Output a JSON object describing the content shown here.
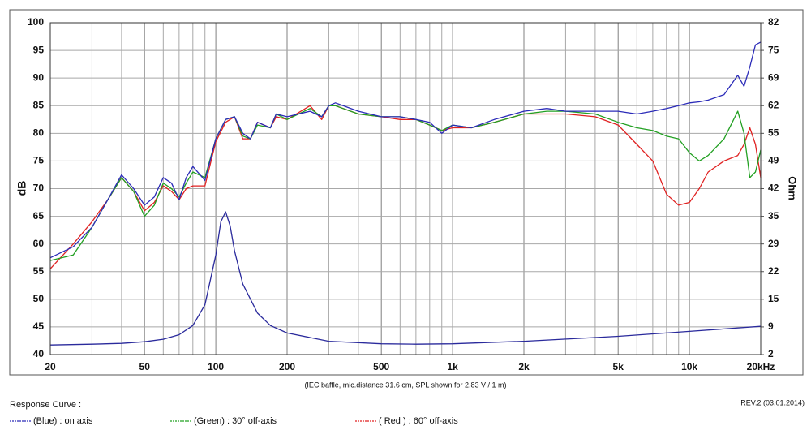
{
  "chart_data": {
    "type": "line",
    "xlabel": null,
    "ylabel": "dB",
    "y2label": "Ohm",
    "note": "(IEC baffle, mic.distance 31.6 cm, SPL shown for 2.83 V / 1 m)",
    "legend_title": "Response Curve :",
    "revision": "REV.2 (03.01.2014)",
    "xscale": "log",
    "grid": true,
    "xlim": [
      20,
      20000
    ],
    "xticks": [
      20,
      50,
      100,
      200,
      500,
      {
        "value": 1000,
        "label": "1k"
      },
      {
        "value": 2000,
        "label": "2k"
      },
      {
        "value": 5000,
        "label": "5k"
      },
      {
        "value": 10000,
        "label": "10k"
      },
      {
        "value": 20000,
        "label": "20kHz"
      }
    ],
    "xminorticks": [
      30,
      40,
      60,
      70,
      80,
      90,
      300,
      400,
      600,
      700,
      800,
      900,
      3000,
      4000,
      6000,
      7000,
      8000,
      9000
    ],
    "ylim": [
      40,
      100
    ],
    "yticks": [
      40,
      45,
      50,
      55,
      60,
      65,
      70,
      75,
      80,
      85,
      90,
      95,
      100
    ],
    "y2lim": [
      2,
      82
    ],
    "y2ticks": [
      2,
      {
        "value": 8.667,
        "label": "9"
      },
      {
        "value": 15.333,
        "label": "15"
      },
      22,
      {
        "value": 28.667,
        "label": "29"
      },
      {
        "value": 35.333,
        "label": "35"
      },
      42,
      {
        "value": 48.667,
        "label": "49"
      },
      {
        "value": 55.333,
        "label": "55"
      },
      62,
      {
        "value": 68.667,
        "label": "69"
      },
      {
        "value": 75.333,
        "label": "75"
      },
      82
    ],
    "x": [
      20,
      25,
      30,
      35,
      40,
      45,
      50,
      55,
      60,
      65,
      70,
      75,
      80,
      90,
      100,
      110,
      120,
      130,
      140,
      150,
      170,
      180,
      200,
      250,
      280,
      300,
      320,
      400,
      500,
      600,
      700,
      800,
      900,
      1000,
      1200,
      1500,
      2000,
      2500,
      3000,
      4000,
      5000,
      6000,
      7000,
      8000,
      9000,
      10000,
      11000,
      12000,
      14000,
      16000,
      17000,
      18000,
      19000,
      20000
    ],
    "series": [
      {
        "name": "(Blue) : on axis",
        "color": "#2b2bb8",
        "values": [
          57.5,
          59.5,
          63,
          68,
          72.5,
          70,
          67,
          68.5,
          72,
          71,
          68,
          72,
          74,
          71.5,
          79,
          82.5,
          83,
          80,
          79,
          82,
          81,
          83.5,
          83,
          84,
          83,
          85,
          85.5,
          84,
          83,
          83,
          82.5,
          82,
          80,
          81.5,
          81,
          82.5,
          84,
          84.5,
          84,
          84,
          84,
          83.5,
          84,
          84.5,
          85,
          85.5,
          85.7,
          86,
          87,
          90.5,
          88.5,
          92,
          96,
          96.5
        ]
      },
      {
        "name": "(Green) : 30° off-axis",
        "color": "#22a022",
        "values": [
          57,
          58,
          63,
          68,
          72,
          69.5,
          65,
          67,
          71,
          70,
          68.5,
          71,
          73,
          72,
          79,
          82.5,
          83,
          79.5,
          79,
          81.5,
          81,
          83.5,
          82.5,
          84.5,
          83,
          85,
          85,
          83.5,
          83,
          83,
          82.5,
          81.5,
          80.5,
          81.5,
          81,
          82,
          83.5,
          84,
          84,
          83.5,
          82,
          81,
          80.5,
          79.5,
          79,
          76.5,
          75,
          76,
          79,
          84,
          80,
          72,
          73,
          77
        ]
      },
      {
        "name": "( Red ) : 60° off-axis",
        "color": "#e02222",
        "values": [
          55.5,
          60,
          64,
          68,
          72,
          69.5,
          66,
          67.5,
          70.5,
          69.5,
          68,
          70,
          70.5,
          70.5,
          78.5,
          82,
          83,
          79,
          79,
          82,
          81,
          83,
          82.5,
          85,
          82.5,
          85,
          85,
          83.5,
          83,
          82.5,
          82.5,
          81.5,
          80.5,
          81,
          81,
          82,
          83.5,
          83.5,
          83.5,
          83,
          81.5,
          78,
          75,
          69,
          67,
          67.5,
          70,
          73,
          75,
          76,
          78,
          81,
          78,
          72
        ]
      },
      {
        "color": "#2a2a9c",
        "axis": "y2",
        "x": [
          20,
          30,
          40,
          50,
          60,
          70,
          80,
          90,
          100,
          105,
          110,
          115,
          120,
          130,
          150,
          170,
          200,
          300,
          500,
          700,
          1000,
          2000,
          5000,
          10000,
          20000
        ],
        "values": [
          4.3,
          4.5,
          4.7,
          5.1,
          5.7,
          6.8,
          9,
          14,
          26,
          34,
          36.4,
          33,
          27,
          19,
          12,
          9,
          7.2,
          5.2,
          4.6,
          4.5,
          4.6,
          5.2,
          6.4,
          7.6,
          8.8
        ]
      }
    ]
  }
}
